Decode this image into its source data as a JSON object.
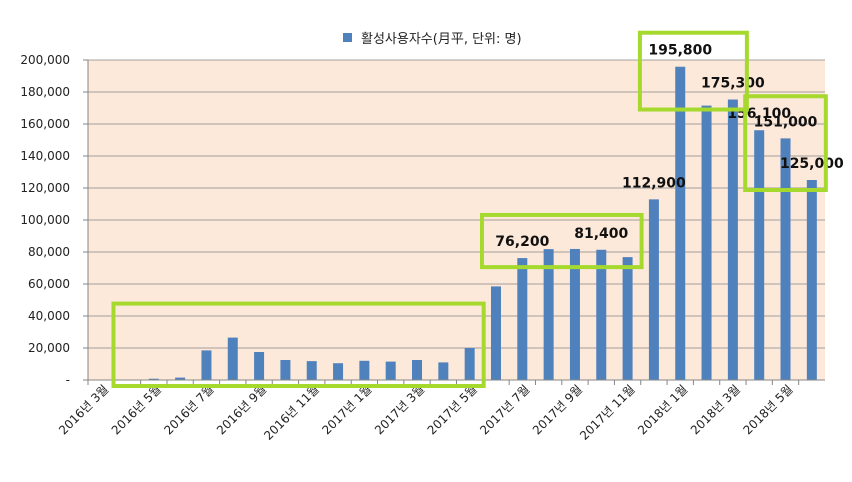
{
  "chart_data": {
    "type": "bar",
    "legend": {
      "label": "활성사용자수(月平, 단위: 명)",
      "placement": "top"
    },
    "categories": [
      "2016년 3월",
      "2016년 4월",
      "2016년 5월",
      "2016년 6월",
      "2016년 7월",
      "2016년 8월",
      "2016년 9월",
      "2016년 10월",
      "2016년 11월",
      "2016년 12월",
      "2017년 1월",
      "2017년 2월",
      "2017년 3월",
      "2017년 4월",
      "2017년 5월",
      "2017년 6월",
      "2017년 7월",
      "2017년 8월",
      "2017년 9월",
      "2017년 10월",
      "2017년 11월",
      "2017년 12월",
      "2018년 1월",
      "2018년 2월",
      "2018년 3월",
      "2018년 4월",
      "2018년 5월",
      "2018년 6월"
    ],
    "x_tick_labels": [
      "2016년 3월",
      "2016년 5월",
      "2016년 7월",
      "2016년 9월",
      "2016년 11월",
      "2017년 1월",
      "2017년 3월",
      "2017년 5월",
      "2017년 7월",
      "2017년 9월",
      "2017년 11월",
      "2018년 1월",
      "2018년 3월",
      "2018년 5월"
    ],
    "series": [
      {
        "name": "활성사용자수(月平, 단위: 명)",
        "color": "#4f81bd",
        "values": [
          300,
          200,
          800,
          1500,
          18500,
          26500,
          17500,
          12500,
          11800,
          10500,
          12000,
          11500,
          12500,
          11000,
          20000,
          58500,
          76200,
          81800,
          81900,
          81400,
          76800,
          112900,
          195800,
          171500,
          175300,
          156100,
          151000,
          125000
        ]
      }
    ],
    "data_labels": [
      {
        "category": "2017년 7월",
        "text": "76,200"
      },
      {
        "category": "2017년 10월",
        "text": "81,400"
      },
      {
        "category": "2017년 12월",
        "text": "112,900"
      },
      {
        "category": "2018년 1월",
        "text": "195,800"
      },
      {
        "category": "2018년 3월",
        "text": "175,300"
      },
      {
        "category": "2018년 4월",
        "text": "156,100"
      },
      {
        "category": "2018년 5월",
        "text": "151,000"
      },
      {
        "category": "2018년 6월",
        "text": "125,000"
      }
    ],
    "y_tick_labels": [
      "-",
      "20,000",
      "40,000",
      "60,000",
      "80,000",
      "100,000",
      "120,000",
      "140,000",
      "160,000",
      "180,000",
      "200,000"
    ],
    "ylim": [
      0,
      200000
    ],
    "grid": true,
    "plot_background": "#fde9d9",
    "highlight_color": "#a6d92d",
    "highlights": [
      {
        "from": "2016년 4월",
        "to": "2017년 5월"
      },
      {
        "from": "2017년 6월",
        "to": "2017년 11월"
      },
      {
        "from": "2017년 12월",
        "to": "2018년 3월"
      },
      {
        "from": "2018년 4월",
        "to": "2018년 6월"
      }
    ]
  }
}
